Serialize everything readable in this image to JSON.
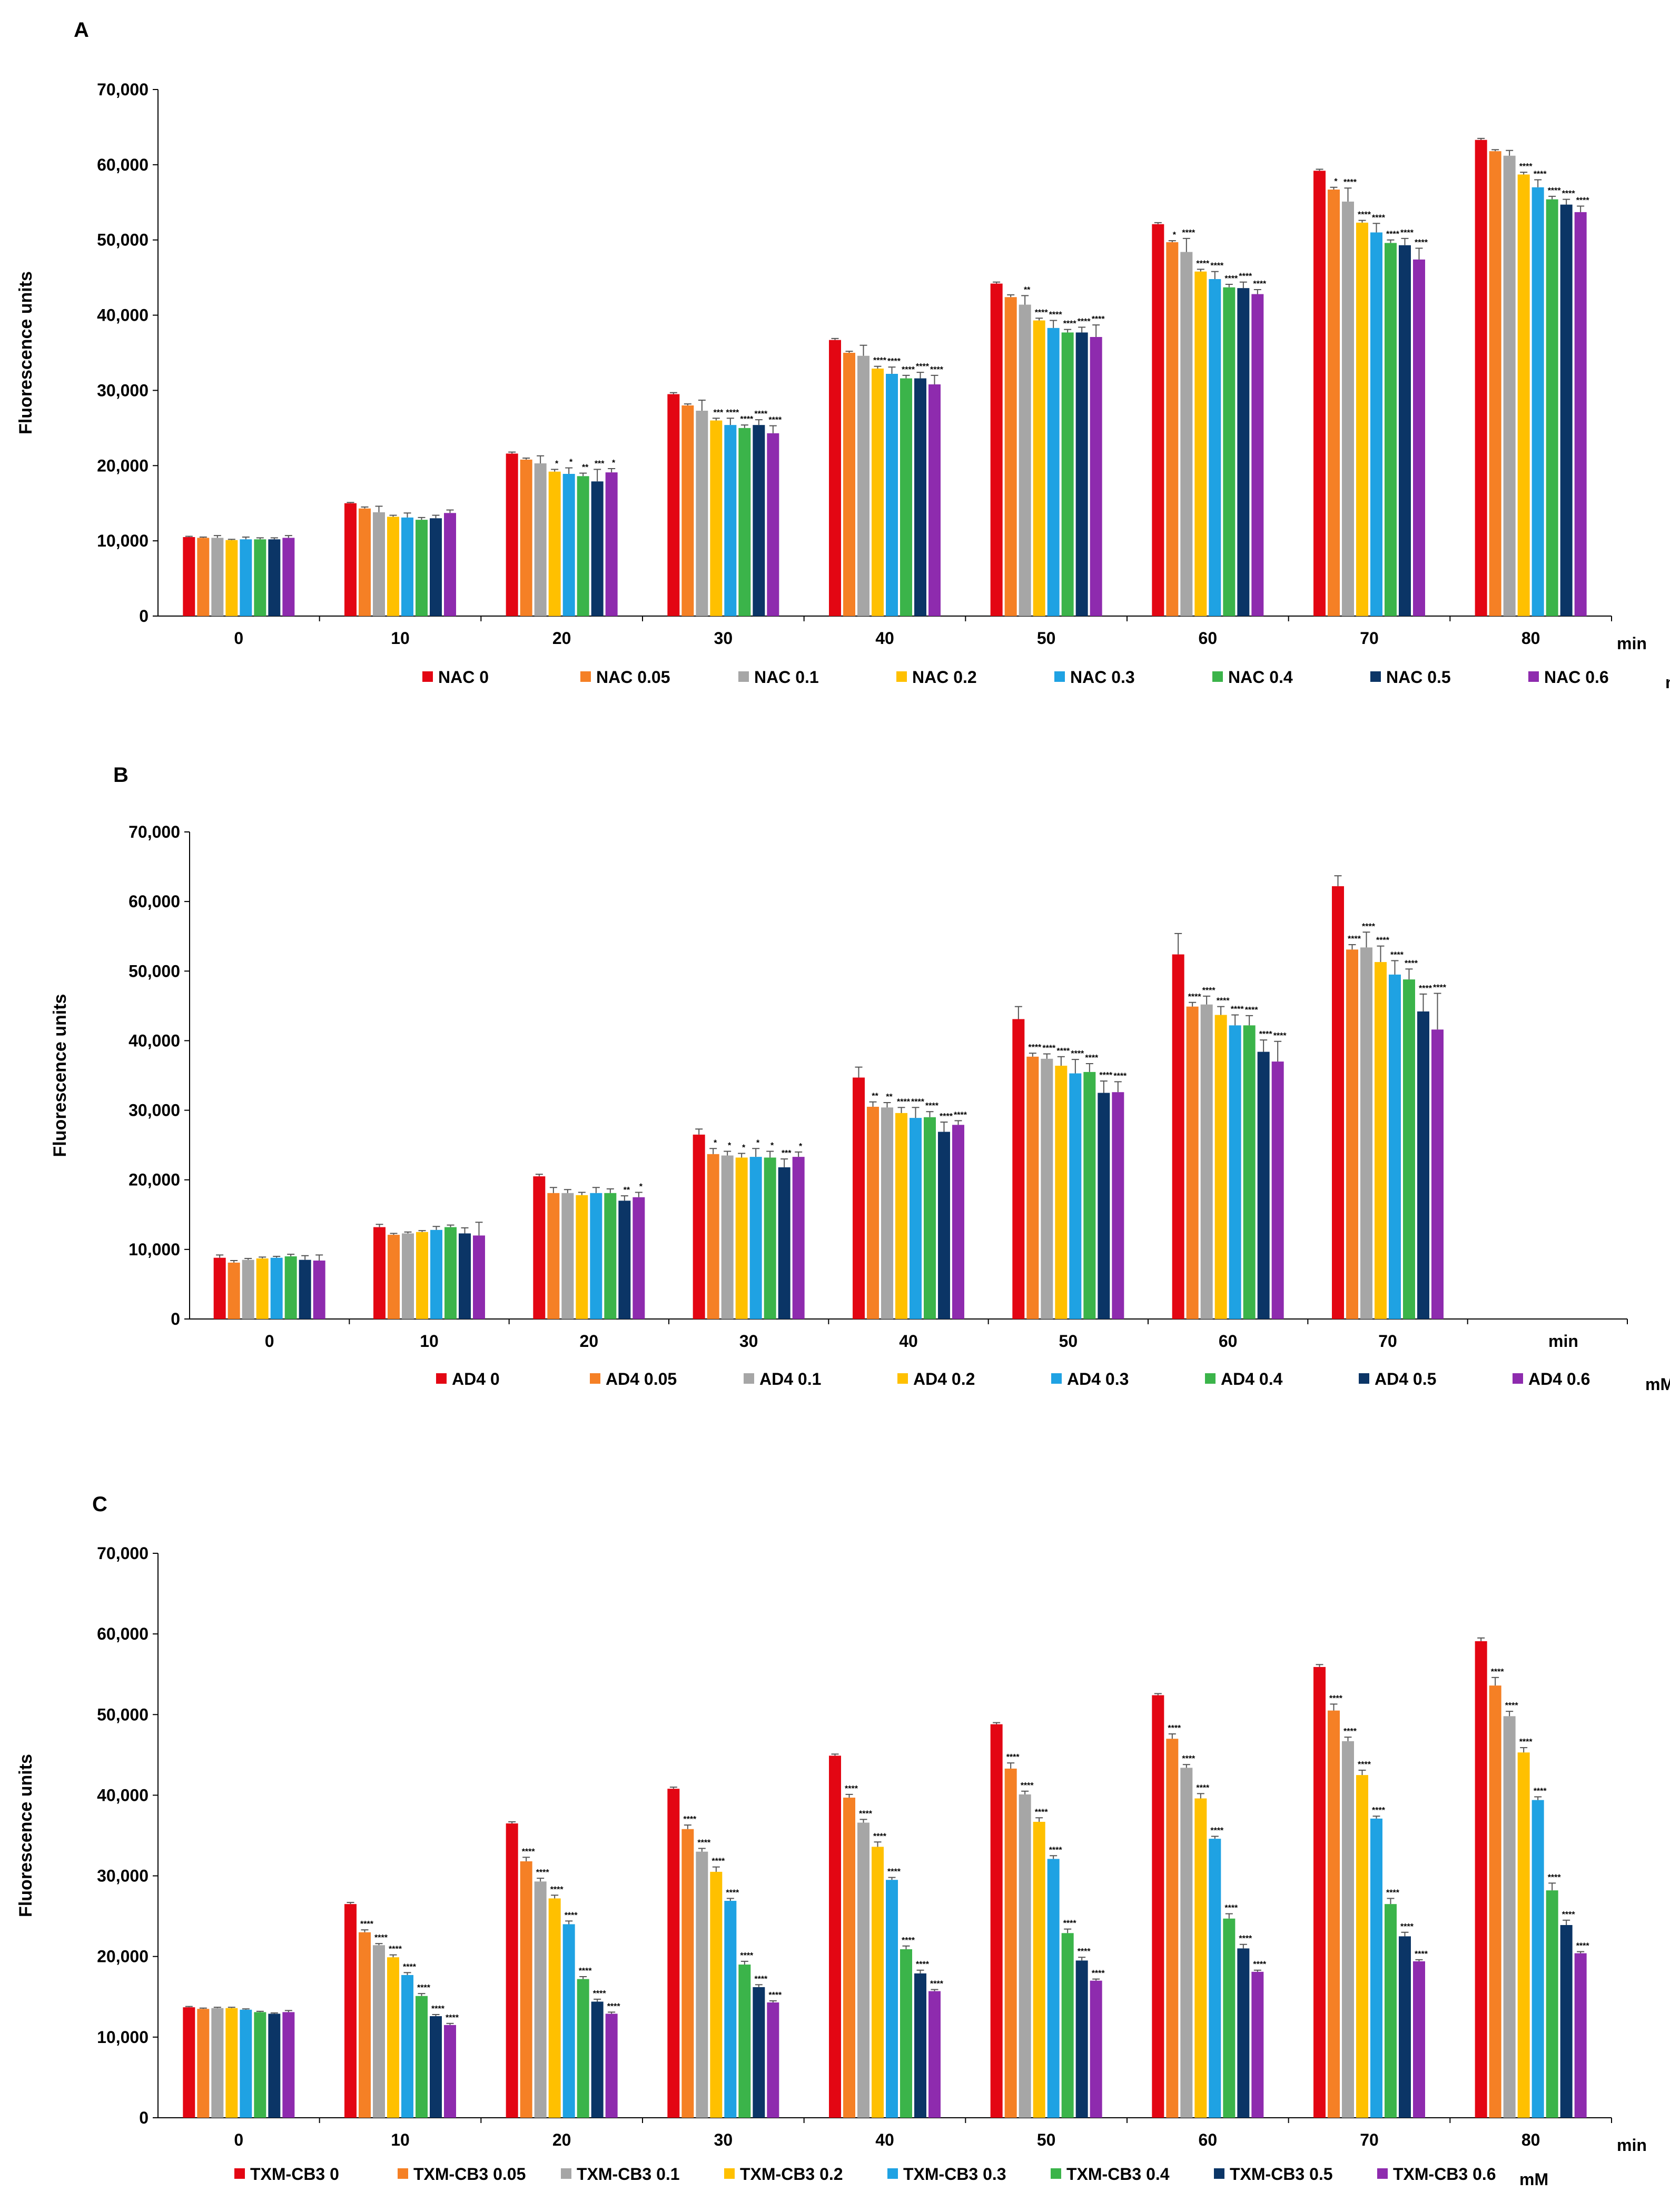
{
  "figure": {
    "colors": [
      "#E30613",
      "#F58025",
      "#A6A6A6",
      "#FFC000",
      "#1FA2E3",
      "#3BB44A",
      "#0B3566",
      "#8E2BAE"
    ]
  },
  "chart_data": [
    {
      "type": "bar",
      "panel": "A",
      "ylabel": "Fluorescence units",
      "xunit": "min",
      "legend_unit": "mM",
      "ylim": [
        0,
        70000
      ],
      "yticks": [
        "0",
        "10,000",
        "20,000",
        "30,000",
        "40,000",
        "50,000",
        "60,000",
        "70,000"
      ],
      "categories": [
        "0",
        "10",
        "20",
        "30",
        "40",
        "50",
        "60",
        "70",
        "80"
      ],
      "series": [
        {
          "name": "NAC 0",
          "values": [
            10500,
            15000,
            21600,
            29500,
            36700,
            44200,
            52100,
            59200,
            63300
          ],
          "errors": [
            100,
            100,
            200,
            200,
            200,
            200,
            200,
            200,
            200
          ],
          "stars": [
            "",
            "",
            "",
            "",
            "",
            "",
            "",
            "",
            ""
          ]
        },
        {
          "name": "NAC 0.05",
          "values": [
            10400,
            14300,
            20800,
            28000,
            35000,
            42400,
            49700,
            56700,
            61800
          ],
          "errors": [
            100,
            200,
            200,
            200,
            200,
            300,
            200,
            300,
            200
          ],
          "stars": [
            "",
            "",
            "",
            "",
            "",
            "",
            "*",
            "*",
            ""
          ]
        },
        {
          "name": "NAC 0.1",
          "values": [
            10400,
            13800,
            20300,
            27300,
            34600,
            41400,
            48400,
            55100,
            61200
          ],
          "errors": [
            300,
            800,
            1000,
            1400,
            1400,
            1200,
            1800,
            1800,
            700
          ],
          "stars": [
            "",
            "",
            "",
            "",
            "",
            "**",
            "****",
            "****",
            ""
          ]
        },
        {
          "name": "NAC 0.2",
          "values": [
            10100,
            13200,
            19200,
            26000,
            32900,
            39300,
            45800,
            52300,
            58700
          ],
          "errors": [
            100,
            200,
            300,
            300,
            300,
            300,
            300,
            300,
            300
          ],
          "stars": [
            "",
            "",
            "*",
            "***",
            "****",
            "****",
            "****",
            "****",
            "****"
          ]
        },
        {
          "name": "NAC 0.3",
          "values": [
            10200,
            13100,
            18900,
            25400,
            32200,
            38300,
            44800,
            51000,
            57000
          ],
          "errors": [
            300,
            600,
            800,
            900,
            900,
            1000,
            1000,
            1200,
            1000
          ],
          "stars": [
            "",
            "",
            "*",
            "****",
            "****",
            "****",
            "****",
            "****",
            "****"
          ]
        },
        {
          "name": "NAC 0.4",
          "values": [
            10200,
            12800,
            18600,
            25000,
            31600,
            37700,
            43700,
            49600,
            55400
          ],
          "errors": [
            200,
            300,
            400,
            400,
            400,
            400,
            400,
            400,
            400
          ],
          "stars": [
            "",
            "",
            "**",
            "****",
            "****",
            "****",
            "****",
            "****",
            "****"
          ]
        },
        {
          "name": "NAC 0.5",
          "values": [
            10200,
            13000,
            17900,
            25400,
            31600,
            37700,
            43600,
            49300,
            54700
          ],
          "errors": [
            200,
            400,
            1600,
            700,
            800,
            700,
            800,
            900,
            700
          ],
          "stars": [
            "",
            "",
            "***",
            "****",
            "****",
            "****",
            "****",
            "****",
            "****"
          ]
        },
        {
          "name": "NAC 0.6",
          "values": [
            10400,
            13700,
            19100,
            24300,
            30800,
            37100,
            42800,
            47400,
            53700
          ],
          "errors": [
            300,
            400,
            500,
            1000,
            1200,
            1600,
            600,
            1500,
            800
          ],
          "stars": [
            "",
            "",
            "*",
            "****",
            "****",
            "****",
            "****",
            "****",
            "****"
          ]
        }
      ]
    },
    {
      "type": "bar",
      "panel": "B",
      "ylabel": "Fluorescence units",
      "xunit": "min",
      "legend_unit": "mM",
      "ylim": [
        0,
        70000
      ],
      "yticks": [
        "0",
        "10,000",
        "20,000",
        "30,000",
        "40,000",
        "50,000",
        "60,000",
        "70,000"
      ],
      "categories": [
        "0",
        "10",
        "20",
        "30",
        "40",
        "50",
        "60",
        "70",
        ""
      ],
      "series": [
        {
          "name": "AD4 0",
          "values": [
            8800,
            13200,
            20500,
            26500,
            34700,
            43100,
            52400,
            62200,
            null
          ],
          "errors": [
            400,
            400,
            300,
            800,
            1500,
            1800,
            3000,
            1500,
            null
          ],
          "stars": [
            "",
            "",
            "",
            "",
            "",
            "",
            "",
            "",
            ""
          ]
        },
        {
          "name": "AD4 0.05",
          "values": [
            8100,
            12100,
            18100,
            23700,
            30500,
            37700,
            44900,
            53100,
            null
          ],
          "errors": [
            300,
            200,
            800,
            800,
            700,
            500,
            600,
            700,
            null
          ],
          "stars": [
            "",
            "",
            "",
            "*",
            "**",
            "****",
            "****",
            "****",
            null
          ]
        },
        {
          "name": "AD4 0.1",
          "values": [
            8500,
            12300,
            18100,
            23500,
            30400,
            37400,
            45200,
            53400,
            null
          ],
          "errors": [
            200,
            200,
            500,
            600,
            700,
            700,
            1200,
            2200,
            null
          ],
          "stars": [
            "",
            "",
            "",
            "*",
            "**",
            "****",
            "****",
            "****",
            null
          ]
        },
        {
          "name": "AD4 0.2",
          "values": [
            8700,
            12500,
            17800,
            23200,
            29600,
            36400,
            43700,
            51300,
            null
          ],
          "errors": [
            200,
            200,
            400,
            600,
            800,
            1300,
            1200,
            2300,
            null
          ],
          "stars": [
            "",
            "",
            "",
            "*",
            "****",
            "****",
            "****",
            "****",
            null
          ]
        },
        {
          "name": "AD4 0.3",
          "values": [
            8800,
            12800,
            18100,
            23300,
            28900,
            35300,
            42200,
            49500,
            null
          ],
          "errors": [
            200,
            500,
            800,
            1200,
            1500,
            2000,
            1500,
            2000,
            null
          ],
          "stars": [
            "",
            "",
            "",
            "*",
            "****",
            "****",
            "****",
            "****",
            null
          ]
        },
        {
          "name": "AD4 0.4",
          "values": [
            9000,
            13200,
            18100,
            23200,
            29000,
            35500,
            42200,
            48800,
            null
          ],
          "errors": [
            300,
            300,
            600,
            900,
            800,
            1200,
            1400,
            1500,
            null
          ],
          "stars": [
            "",
            "",
            "",
            "*",
            "****",
            "****",
            "****",
            "****",
            null
          ]
        },
        {
          "name": "AD4 0.5",
          "values": [
            8500,
            12300,
            17000,
            21800,
            26900,
            32500,
            38400,
            44200,
            null
          ],
          "errors": [
            600,
            800,
            700,
            1200,
            1400,
            1700,
            1700,
            2500,
            null
          ],
          "stars": [
            "",
            "",
            "**",
            "***",
            "****",
            "****",
            "****",
            "****",
            null
          ]
        },
        {
          "name": "AD4 0.6",
          "values": [
            8400,
            12000,
            17500,
            23300,
            27900,
            32600,
            37000,
            41600,
            null
          ],
          "errors": [
            800,
            1900,
            700,
            700,
            600,
            1500,
            2900,
            5200,
            null
          ],
          "stars": [
            "",
            "",
            "*",
            "*",
            "****",
            "****",
            "****",
            "****",
            null
          ]
        }
      ]
    },
    {
      "type": "bar",
      "panel": "C",
      "ylabel": "Fluorescence units",
      "xunit": "min",
      "legend_unit": "mM",
      "ylim": [
        0,
        70000
      ],
      "yticks": [
        "0",
        "10,000",
        "20,000",
        "30,000",
        "40,000",
        "50,000",
        "60,000",
        "70,000"
      ],
      "categories": [
        "0",
        "10",
        "20",
        "30",
        "40",
        "50",
        "60",
        "70",
        "80"
      ],
      "series": [
        {
          "name": "TXM-CB3 0",
          "values": [
            13700,
            26500,
            36500,
            40800,
            44900,
            48800,
            52400,
            55900,
            59100
          ],
          "errors": [
            100,
            200,
            200,
            200,
            200,
            200,
            200,
            300,
            400
          ],
          "stars": [
            "",
            "",
            "",
            "",
            "",
            "",
            "",
            "",
            ""
          ]
        },
        {
          "name": "TXM-CB3 0.05",
          "values": [
            13500,
            23000,
            31800,
            35800,
            39700,
            43300,
            47000,
            50500,
            53600
          ],
          "errors": [
            100,
            300,
            500,
            500,
            400,
            700,
            600,
            800,
            1000
          ],
          "stars": [
            "",
            "****",
            "****",
            "****",
            "****",
            "****",
            "****",
            "****",
            "****"
          ]
        },
        {
          "name": "TXM-CB3 0.1",
          "values": [
            13600,
            21400,
            29300,
            33000,
            36600,
            40100,
            43400,
            46700,
            49800
          ],
          "errors": [
            100,
            200,
            400,
            400,
            400,
            400,
            400,
            500,
            600
          ],
          "stars": [
            "",
            "****",
            "****",
            "****",
            "****",
            "****",
            "****",
            "****",
            "****"
          ]
        },
        {
          "name": "TXM-CB3 0.2",
          "values": [
            13600,
            19900,
            27200,
            30500,
            33600,
            36700,
            39600,
            42500,
            45300
          ],
          "errors": [
            100,
            300,
            400,
            600,
            600,
            500,
            600,
            600,
            600
          ],
          "stars": [
            "",
            "****",
            "****",
            "****",
            "****",
            "****",
            "****",
            "****",
            "****"
          ]
        },
        {
          "name": "TXM-CB3 0.3",
          "values": [
            13400,
            17700,
            24000,
            26900,
            29500,
            32100,
            34600,
            37100,
            39400
          ],
          "errors": [
            100,
            300,
            400,
            300,
            300,
            400,
            300,
            300,
            400
          ],
          "stars": [
            "",
            "****",
            "****",
            "****",
            "****",
            "****",
            "****",
            "****",
            "****"
          ]
        },
        {
          "name": "TXM-CB3 0.4",
          "values": [
            13100,
            15100,
            17200,
            19000,
            20900,
            22900,
            24700,
            26500,
            28200
          ],
          "errors": [
            100,
            300,
            300,
            400,
            400,
            500,
            600,
            700,
            900
          ],
          "stars": [
            "",
            "****",
            "****",
            "****",
            "****",
            "****",
            "****",
            "****",
            "****"
          ]
        },
        {
          "name": "TXM-CB3 0.5",
          "values": [
            12900,
            12600,
            14400,
            16200,
            17900,
            19500,
            21000,
            22500,
            23900
          ],
          "errors": [
            100,
            200,
            300,
            300,
            400,
            400,
            500,
            500,
            600
          ],
          "stars": [
            "",
            "****",
            "****",
            "****",
            "****",
            "****",
            "****",
            "****",
            "****"
          ]
        },
        {
          "name": "TXM-CB3 0.6",
          "values": [
            13100,
            11500,
            12900,
            14300,
            15700,
            17000,
            18100,
            19400,
            20400
          ],
          "errors": [
            200,
            200,
            200,
            200,
            200,
            200,
            200,
            200,
            200
          ],
          "stars": [
            "",
            "****",
            "****",
            "****",
            "****",
            "****",
            "****",
            "****",
            "****"
          ]
        }
      ]
    }
  ]
}
